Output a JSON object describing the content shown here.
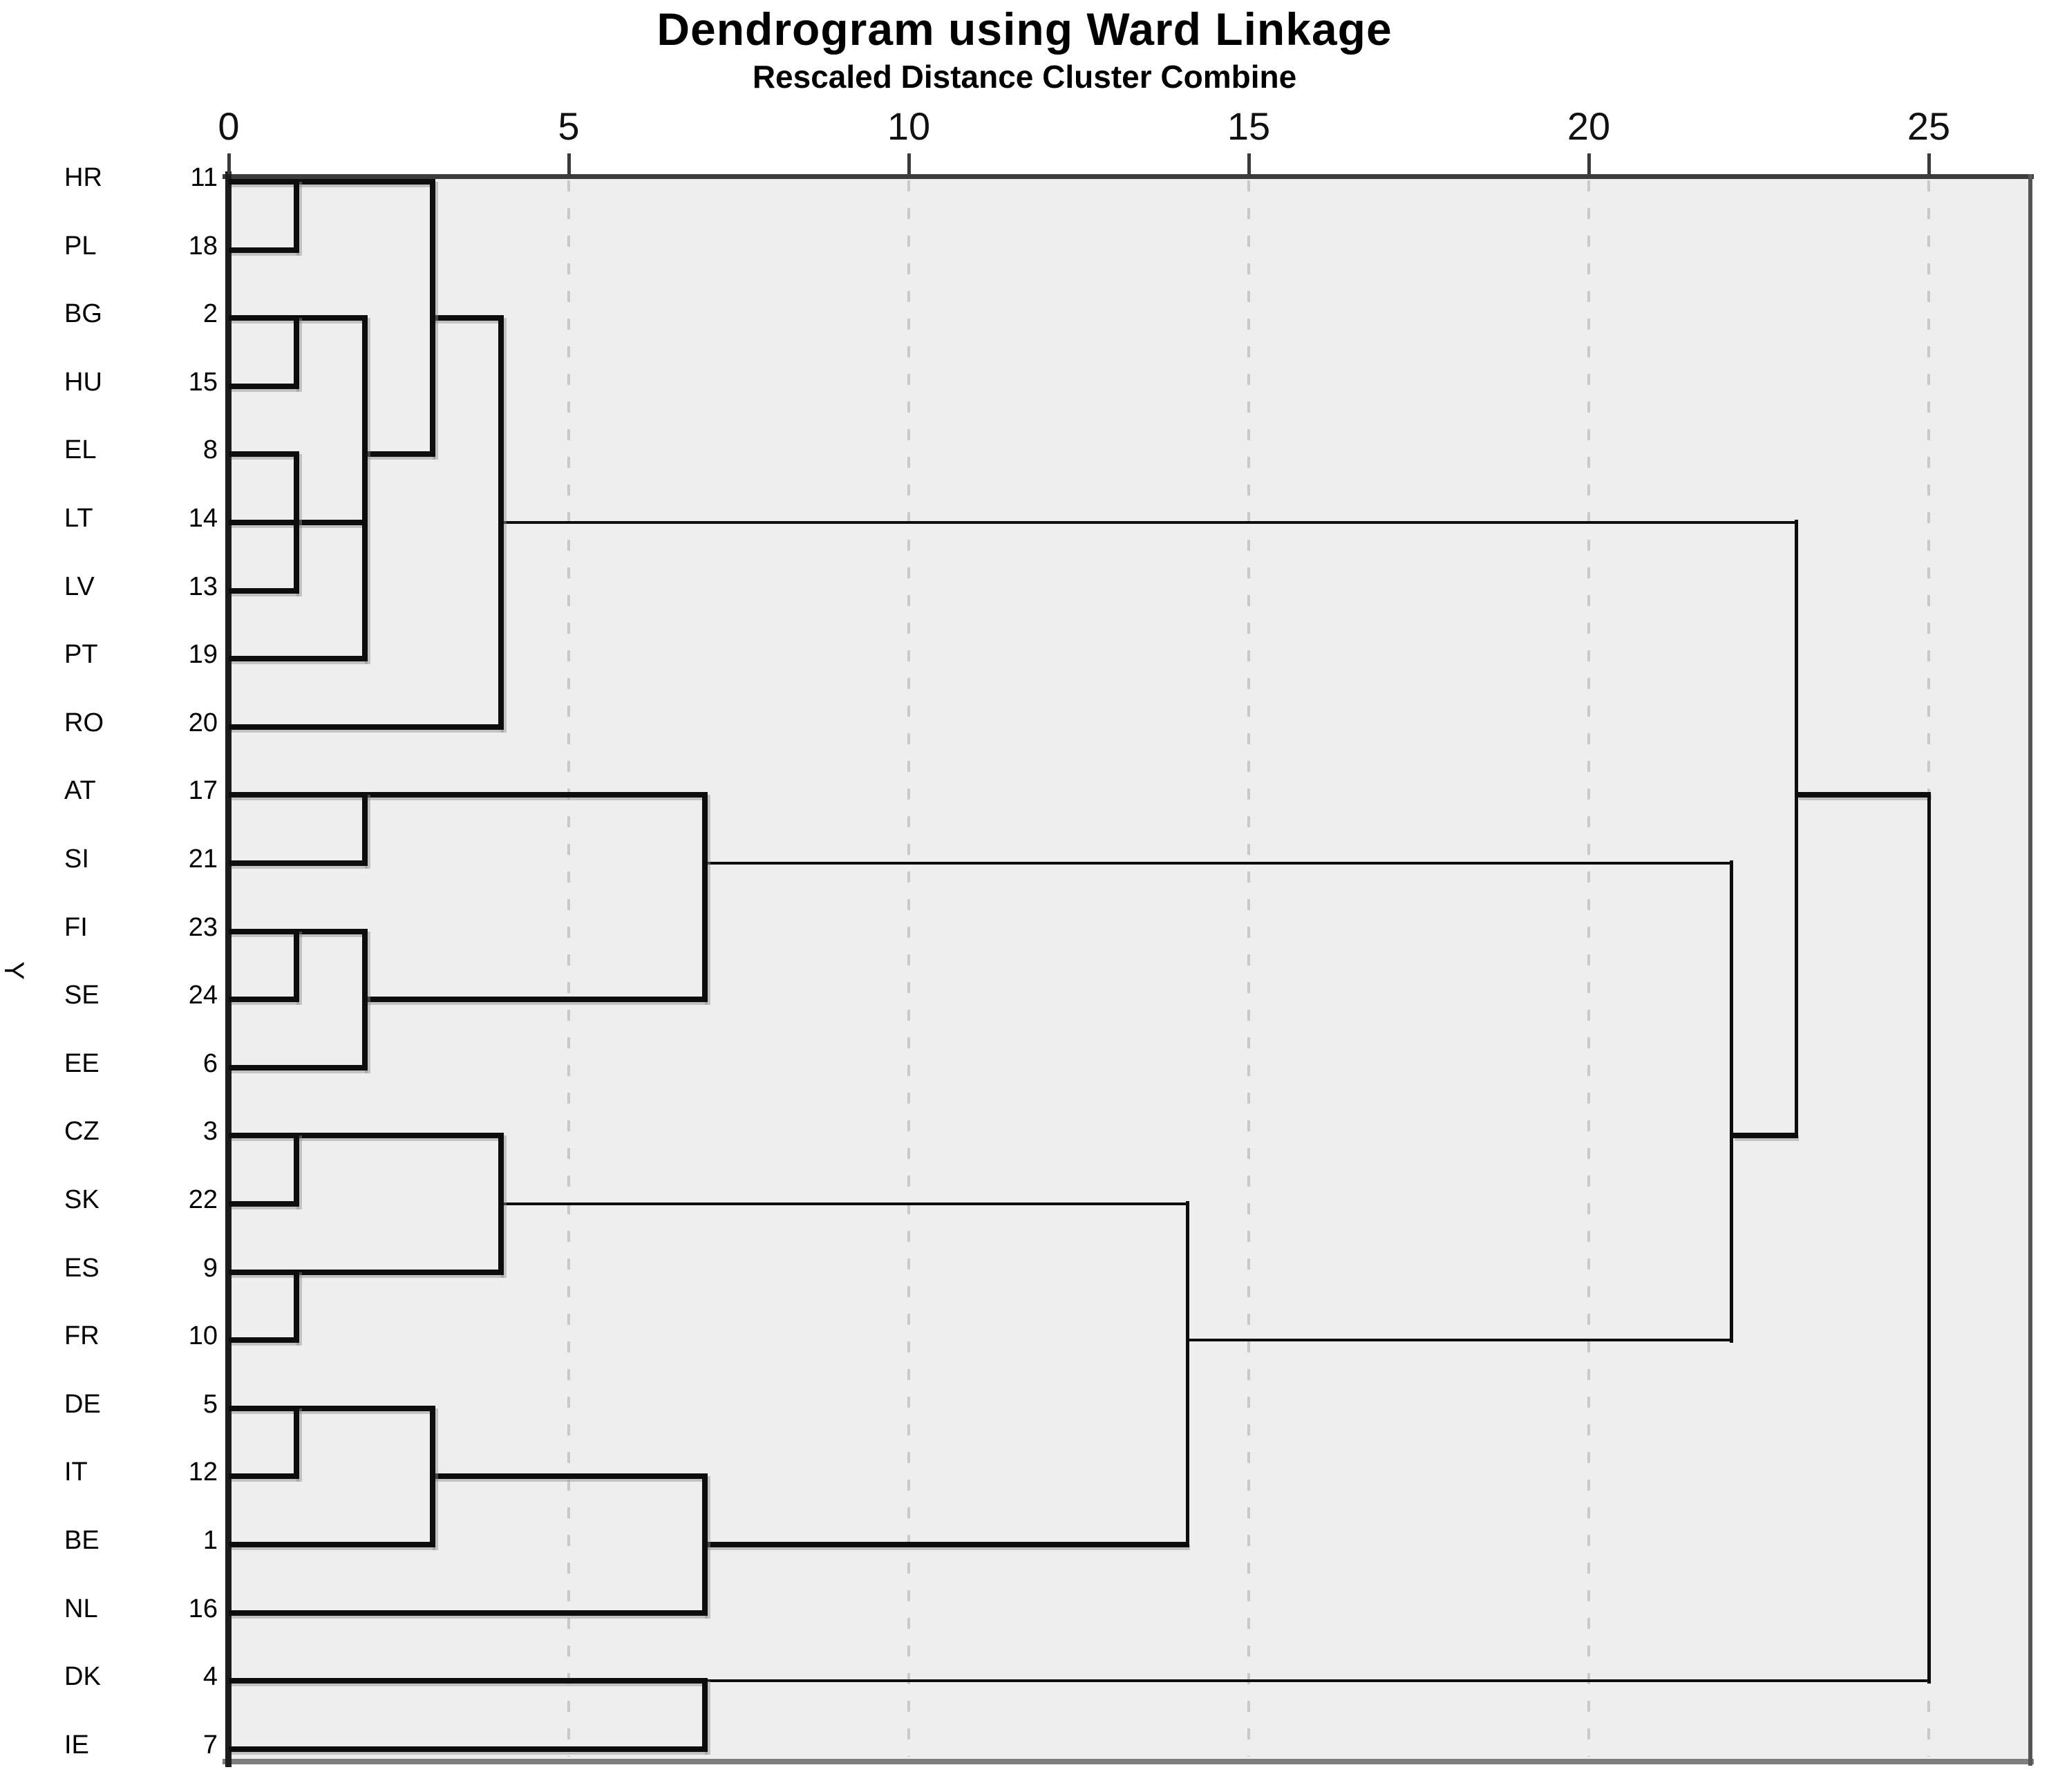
{
  "title": "Dendrogram using Ward Linkage",
  "subtitle": "Rescaled Distance Cluster Combine",
  "y_axis_label": "Y",
  "colors": {
    "plot_background": "#eeeeee",
    "line": "#0d0d0d",
    "gridline": "#c9c9c9",
    "frame_top": "#3c3c3c",
    "frame_left": "#1c1c1c",
    "frame_right": "#565656",
    "frame_bottom": "#7e7e7e"
  },
  "chart_data": {
    "type": "dendrogram",
    "orientation": "horizontal",
    "linkage_method": "Ward Linkage",
    "distance_axis_label": "Rescaled Distance Cluster Combine",
    "axis_range": [
      0,
      25
    ],
    "axis_ticks": [
      0,
      5,
      10,
      15,
      20,
      25
    ],
    "grid": "dashed vertical gridlines at ticks 5,10,15,20,25",
    "leaves": [
      {
        "label": "HR",
        "case_num": 11
      },
      {
        "label": "PL",
        "case_num": 18
      },
      {
        "label": "BG",
        "case_num": 2
      },
      {
        "label": "HU",
        "case_num": 15
      },
      {
        "label": "EL",
        "case_num": 8
      },
      {
        "label": "LT",
        "case_num": 14
      },
      {
        "label": "LV",
        "case_num": 13
      },
      {
        "label": "PT",
        "case_num": 19
      },
      {
        "label": "RO",
        "case_num": 20
      },
      {
        "label": "AT",
        "case_num": 17
      },
      {
        "label": "SI",
        "case_num": 21
      },
      {
        "label": "FI",
        "case_num": 23
      },
      {
        "label": "SE",
        "case_num": 24
      },
      {
        "label": "EE",
        "case_num": 6
      },
      {
        "label": "CZ",
        "case_num": 3
      },
      {
        "label": "SK",
        "case_num": 22
      },
      {
        "label": "ES",
        "case_num": 9
      },
      {
        "label": "FR",
        "case_num": 10
      },
      {
        "label": "DE",
        "case_num": 5
      },
      {
        "label": "IT",
        "case_num": 12
      },
      {
        "label": "BE",
        "case_num": 1
      },
      {
        "label": "NL",
        "case_num": 16
      },
      {
        "label": "DK",
        "case_num": 4
      },
      {
        "label": "IE",
        "case_num": 7
      }
    ],
    "merges": [
      {
        "clusters": [
          "HR",
          "PL"
        ],
        "distance": 1
      },
      {
        "clusters": [
          "BG",
          "HU"
        ],
        "distance": 1
      },
      {
        "clusters": [
          "LT",
          "LV"
        ],
        "distance": 1
      },
      {
        "clusters": [
          "EL",
          "LT+LV"
        ],
        "distance": 1
      },
      {
        "clusters": [
          "FI",
          "SE"
        ],
        "distance": 1
      },
      {
        "clusters": [
          "CZ",
          "SK"
        ],
        "distance": 1
      },
      {
        "clusters": [
          "ES",
          "FR"
        ],
        "distance": 1
      },
      {
        "clusters": [
          "DE",
          "IT"
        ],
        "distance": 1
      },
      {
        "clusters": [
          "BG+HU",
          "EL+LT+LV"
        ],
        "distance": 2
      },
      {
        "clusters": [
          "BG+HU+EL+LT+LV",
          "PT"
        ],
        "distance": 2
      },
      {
        "clusters": [
          "AT",
          "SI"
        ],
        "distance": 2
      },
      {
        "clusters": [
          "FI+SE",
          "EE"
        ],
        "distance": 2
      },
      {
        "clusters": [
          "HR+PL",
          "BG+HU+EL+LT+LV+PT"
        ],
        "distance": 3
      },
      {
        "clusters": [
          "DE+IT",
          "BE"
        ],
        "distance": 3
      },
      {
        "clusters": [
          "CZ+SK",
          "ES+FR"
        ],
        "distance": 4
      },
      {
        "clusters": [
          "HR+PL+BG+HU+EL+LT+LV+PT",
          "RO"
        ],
        "distance": 4
      },
      {
        "clusters": [
          "AT+SI",
          "FI+SE+EE"
        ],
        "distance": 7
      },
      {
        "clusters": [
          "DE+IT+BE",
          "NL"
        ],
        "distance": 7
      },
      {
        "clusters": [
          "DK",
          "IE"
        ],
        "distance": 7
      },
      {
        "clusters": [
          "CZ+SK+ES+FR",
          "DE+IT+BE+NL"
        ],
        "distance": 14.1
      },
      {
        "clusters": [
          "AT+SI+FI+SE+EE",
          "CZ+SK+ES+FR+DE+IT+BE+NL"
        ],
        "distance": 22.1
      },
      {
        "clusters": [
          "HR..RO (top block)",
          "AT..NL"
        ],
        "distance": 23.1
      },
      {
        "clusters": [
          "HR..NL (all above)",
          "DK+IE"
        ],
        "distance": 25
      }
    ],
    "horizontal_segments": [
      [
        1,
        0,
        3.0
      ],
      [
        2,
        0,
        1.0
      ],
      [
        3,
        0,
        2.0
      ],
      [
        3,
        3.0,
        4.0
      ],
      [
        4,
        0,
        1.0
      ],
      [
        5,
        0,
        1.0
      ],
      [
        5,
        2.0,
        3.0
      ],
      [
        6,
        0,
        2.0
      ],
      [
        6,
        4.0,
        23.05
      ],
      [
        7,
        0,
        1.0
      ],
      [
        8,
        0,
        2.0
      ],
      [
        9,
        0,
        4.0
      ],
      [
        10,
        0,
        7.0
      ],
      [
        10,
        23.05,
        25.0
      ],
      [
        11,
        0,
        2.0
      ],
      [
        11,
        7.0,
        22.1
      ],
      [
        12,
        0,
        2.0
      ],
      [
        13,
        0,
        1.0
      ],
      [
        13,
        2.0,
        7.0
      ],
      [
        14,
        0,
        2.0
      ],
      [
        15,
        0,
        4.0
      ],
      [
        15,
        22.1,
        23.05
      ],
      [
        16,
        0,
        1.0
      ],
      [
        16,
        4.0,
        14.1
      ],
      [
        17,
        0,
        4.0
      ],
      [
        18,
        0,
        1.0
      ],
      [
        18,
        14.1,
        22.1
      ],
      [
        19,
        0,
        3.0
      ],
      [
        20,
        0,
        1.0
      ],
      [
        20,
        3.0,
        7.0
      ],
      [
        21,
        0,
        3.0
      ],
      [
        21,
        7.0,
        14.1
      ],
      [
        22,
        0,
        7.0
      ],
      [
        23,
        0,
        7.0
      ],
      [
        23,
        7.0,
        25.0
      ],
      [
        24,
        0,
        7.0
      ]
    ],
    "vertical_segments": [
      [
        1.0,
        1,
        2
      ],
      [
        1.0,
        3,
        4
      ],
      [
        1.0,
        5,
        7
      ],
      [
        1.0,
        12,
        13
      ],
      [
        1.0,
        15,
        16
      ],
      [
        1.0,
        17,
        18
      ],
      [
        1.0,
        19,
        20
      ],
      [
        2.0,
        3,
        8
      ],
      [
        2.0,
        10,
        11
      ],
      [
        2.0,
        12,
        14
      ],
      [
        3.0,
        1,
        5
      ],
      [
        3.0,
        19,
        21
      ],
      [
        4.0,
        15,
        17
      ],
      [
        4.0,
        3,
        9
      ],
      [
        7.0,
        10,
        13
      ],
      [
        7.0,
        20,
        22
      ],
      [
        7.0,
        23,
        24
      ],
      [
        14.1,
        16,
        21
      ],
      [
        22.1,
        11,
        18
      ],
      [
        23.05,
        6,
        15
      ],
      [
        25.0,
        10,
        23
      ]
    ]
  }
}
